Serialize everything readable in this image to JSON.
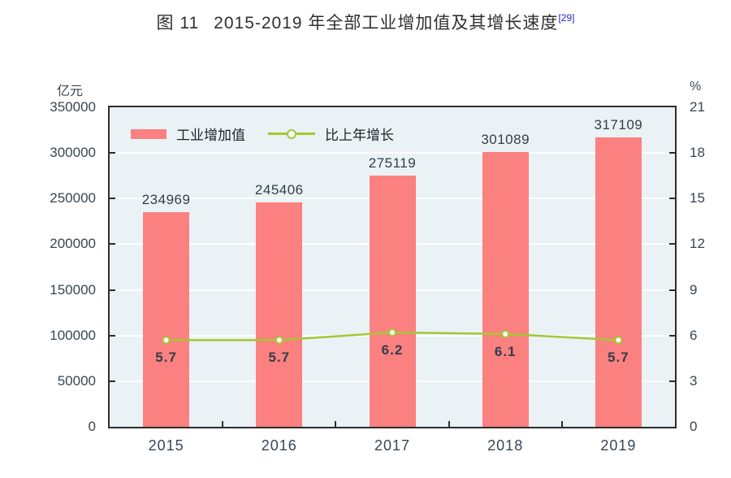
{
  "title": {
    "figure_label": "图 11",
    "text": "2015-2019 年全部工业增加值及其增长速度",
    "footnote_ref": "[29]",
    "footnote_color": "#2323bb"
  },
  "chart_data": {
    "type": "bar",
    "subtype": "bar+line combo, dual axis",
    "categories": [
      "2015",
      "2016",
      "2017",
      "2018",
      "2019"
    ],
    "series": [
      {
        "name": "工业增加值",
        "type": "bar",
        "axis": "left",
        "values": [
          234969,
          245406,
          275119,
          301089,
          317109
        ],
        "labels": [
          "234969",
          "245406",
          "275119",
          "301089",
          "317109"
        ],
        "color": "#fb8080"
      },
      {
        "name": "比上年增长",
        "type": "line",
        "axis": "right",
        "values": [
          5.7,
          5.7,
          6.2,
          6.1,
          5.7
        ],
        "labels": [
          "5.7",
          "5.7",
          "6.2",
          "6.1",
          "5.7"
        ],
        "color": "#a5c733",
        "marker": "open-circle-white-fill"
      }
    ],
    "left_axis": {
      "unit": "亿元",
      "min": 0,
      "max": 350000,
      "step": 50000,
      "tick_labels": [
        "350000",
        "300000",
        "250000",
        "200000",
        "150000",
        "100000",
        "50000",
        "0"
      ]
    },
    "right_axis": {
      "unit": "%",
      "min": 0,
      "max": 21,
      "step": 3,
      "tick_labels": [
        "21",
        "18",
        "15",
        "12",
        "9",
        "6",
        "3",
        "0"
      ]
    },
    "legend_position": "top-left inside plot",
    "grid": "horizontal white lines",
    "colors": {
      "plot_background": "#eaf2f6",
      "gridline": "#ffffff",
      "border": "#2d2d2d",
      "tick_label_text": "#394653",
      "value_label_text": "#333e4b"
    }
  }
}
